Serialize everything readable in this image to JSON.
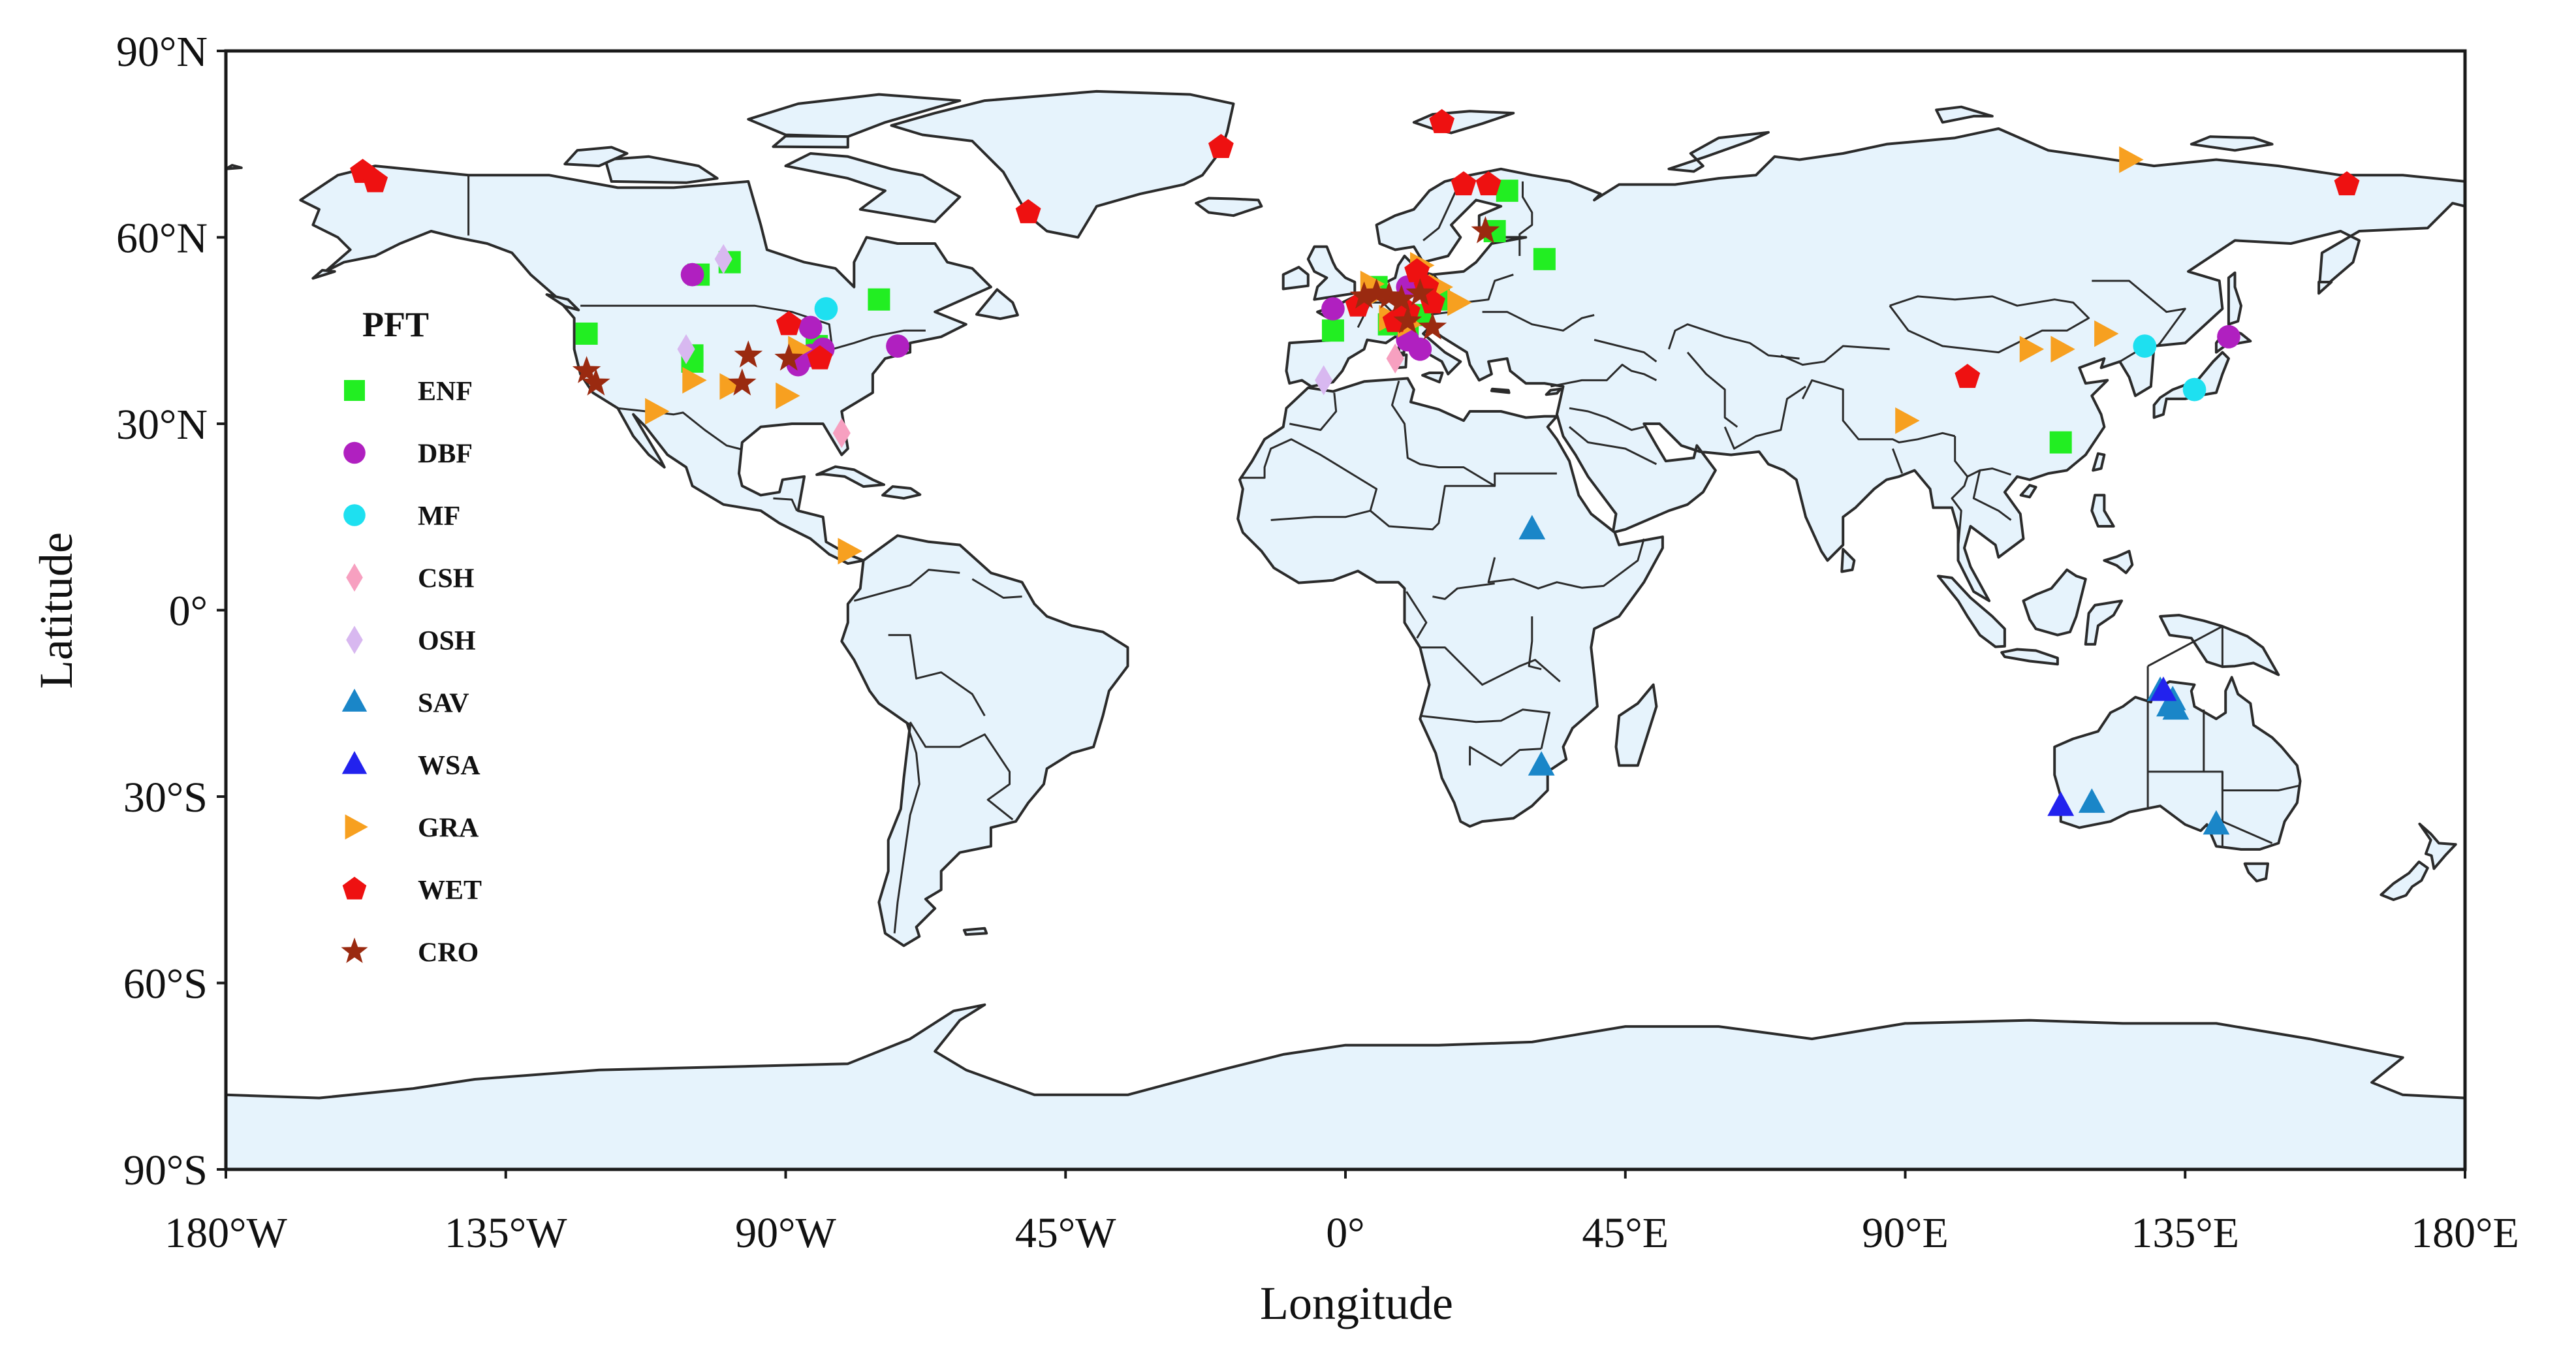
{
  "map": {
    "x_axis_title": "Longitude",
    "y_axis_title": "Latitude",
    "lon_range": [
      -180,
      180
    ],
    "lat_range": [
      -90,
      90
    ],
    "lon_ticks": [
      {
        "value": -180,
        "label": "180°W"
      },
      {
        "value": -135,
        "label": "135°W"
      },
      {
        "value": -90,
        "label": "90°W"
      },
      {
        "value": -45,
        "label": "45°W"
      },
      {
        "value": 0,
        "label": "0°"
      },
      {
        "value": 45,
        "label": "45°E"
      },
      {
        "value": 90,
        "label": "90°E"
      },
      {
        "value": 135,
        "label": "135°E"
      },
      {
        "value": 180,
        "label": "180°E"
      }
    ],
    "lat_ticks": [
      {
        "value": 90,
        "label": "90°N"
      },
      {
        "value": 60,
        "label": "60°N"
      },
      {
        "value": 30,
        "label": "30°N"
      },
      {
        "value": 0,
        "label": "0°"
      },
      {
        "value": -30,
        "label": "30°S"
      },
      {
        "value": -60,
        "label": "60°S"
      },
      {
        "value": -90,
        "label": "90°S"
      }
    ],
    "land_color": "#e6f3fc",
    "border_color": "#2b2b2b"
  },
  "legend": {
    "title": "PFT",
    "placement": "left-middle",
    "items": [
      {
        "code": "ENF",
        "label": "ENF",
        "marker": "square",
        "color": "#22ee22"
      },
      {
        "code": "DBF",
        "label": "DBF",
        "marker": "circle",
        "color": "#b020c0"
      },
      {
        "code": "MF",
        "label": "MF",
        "marker": "circle",
        "color": "#1ee0f0"
      },
      {
        "code": "CSH",
        "label": "CSH",
        "marker": "diamond",
        "color": "#f7a0c0"
      },
      {
        "code": "OSH",
        "label": "OSH",
        "marker": "diamond",
        "color": "#d8b8f0"
      },
      {
        "code": "SAV",
        "label": "SAV",
        "marker": "triangle-up",
        "color": "#1a86c8"
      },
      {
        "code": "WSA",
        "label": "WSA",
        "marker": "triangle-up",
        "color": "#2222ee"
      },
      {
        "code": "GRA",
        "label": "GRA",
        "marker": "triangle-right",
        "color": "#f7a020"
      },
      {
        "code": "WET",
        "label": "WET",
        "marker": "pentagon",
        "color": "#ee1111"
      },
      {
        "code": "CRO",
        "label": "CRO",
        "marker": "star",
        "color": "#9a2a10"
      }
    ]
  },
  "chart_data": {
    "type": "scatter",
    "xlabel": "Longitude",
    "ylabel": "Latitude",
    "xlim": [
      -180,
      180
    ],
    "ylim": [
      -90,
      90
    ],
    "series": [
      {
        "name": "ENF",
        "points": [
          [
            -122,
            44.5
          ],
          [
            -105,
            40
          ],
          [
            -105,
            41
          ],
          [
            -104,
            54
          ],
          [
            -99,
            56
          ],
          [
            -85,
            42.5
          ],
          [
            -75,
            50
          ],
          [
            -2,
            45
          ],
          [
            5,
            52
          ],
          [
            7,
            46
          ],
          [
            10,
            46
          ],
          [
            12,
            47.5
          ],
          [
            15,
            50
          ],
          [
            24,
            61
          ],
          [
            26,
            67.5
          ],
          [
            32,
            56.5
          ],
          [
            115,
            27
          ]
        ]
      },
      {
        "name": "DBF",
        "points": [
          [
            -105,
            54
          ],
          [
            -88,
            39.5
          ],
          [
            -86,
            45.5
          ],
          [
            -86,
            41
          ],
          [
            -84,
            42
          ],
          [
            -72,
            42.5
          ],
          [
            -2,
            48.5
          ],
          [
            10,
            52
          ],
          [
            10,
            43.5
          ],
          [
            12,
            42
          ],
          [
            142,
            44
          ]
        ]
      },
      {
        "name": "MF",
        "points": [
          [
            -83.5,
            48.5
          ],
          [
            128.5,
            42.5
          ],
          [
            136.5,
            35.5
          ]
        ]
      },
      {
        "name": "CSH",
        "points": [
          [
            -81,
            28.5
          ],
          [
            8,
            40.5
          ]
        ]
      },
      {
        "name": "OSH",
        "points": [
          [
            -106,
            42
          ],
          [
            -100,
            56.5
          ],
          [
            -3.5,
            37
          ]
        ]
      },
      {
        "name": "SAV",
        "points": [
          [
            30,
            13
          ],
          [
            31.5,
            -25
          ],
          [
            120,
            -31
          ],
          [
            131,
            -13
          ],
          [
            132.5,
            -15.5
          ],
          [
            133,
            -14.5
          ],
          [
            133.5,
            -16
          ],
          [
            140,
            -34.5
          ]
        ]
      },
      {
        "name": "WSA",
        "points": [
          [
            115,
            -31.5
          ],
          [
            131.5,
            -13
          ]
        ]
      },
      {
        "name": "GRA",
        "points": [
          [
            -111,
            32
          ],
          [
            -105,
            37
          ],
          [
            -99,
            36
          ],
          [
            -90,
            34.5
          ],
          [
            -88,
            42
          ],
          [
            -80,
            9.5
          ],
          [
            4,
            52.5
          ],
          [
            5,
            51
          ],
          [
            7,
            47
          ],
          [
            10,
            46
          ],
          [
            12,
            55.5
          ],
          [
            15,
            52
          ],
          [
            18,
            49.5
          ],
          [
            90,
            30.5
          ],
          [
            110,
            42
          ],
          [
            115,
            42
          ],
          [
            122,
            44.5
          ],
          [
            126,
            72.5
          ]
        ]
      },
      {
        "name": "WET",
        "points": [
          [
            -158,
            70.5
          ],
          [
            -156,
            69
          ],
          [
            -89.5,
            46
          ],
          [
            -84.5,
            40.5
          ],
          [
            -51,
            64
          ],
          [
            -20,
            74.5
          ],
          [
            2,
            49
          ],
          [
            8,
            46.5
          ],
          [
            10,
            48
          ],
          [
            11.5,
            54.5
          ],
          [
            13,
            52
          ],
          [
            14,
            49.5
          ],
          [
            15.5,
            78.5
          ],
          [
            19,
            68.5
          ],
          [
            23,
            68.5
          ],
          [
            100,
            37.5
          ],
          [
            161,
            68.5
          ]
        ]
      },
      {
        "name": "CRO",
        "points": [
          [
            -122,
            38.5
          ],
          [
            -120.5,
            36.5
          ],
          [
            -97,
            36.5
          ],
          [
            -96,
            41
          ],
          [
            -89.5,
            40.5
          ],
          [
            3,
            50.5
          ],
          [
            5,
            51
          ],
          [
            7,
            50.5
          ],
          [
            9,
            50
          ],
          [
            10,
            46.5
          ],
          [
            12,
            51
          ],
          [
            14,
            45.5
          ],
          [
            22.5,
            61
          ]
        ]
      }
    ]
  }
}
